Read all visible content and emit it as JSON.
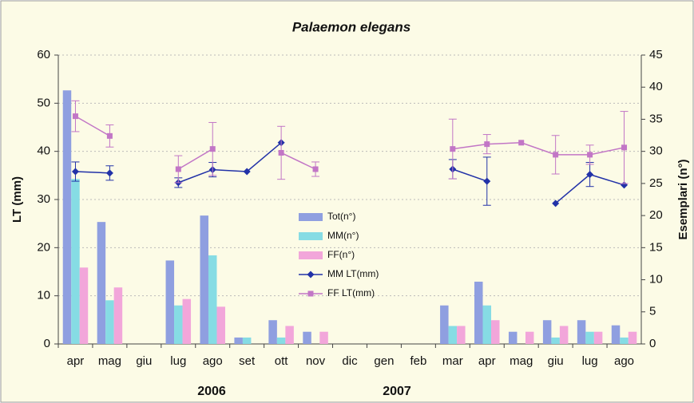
{
  "chart_data": {
    "type": "bar-line",
    "title": "Palaemon elegans",
    "y_label": "LT (mm)",
    "y2_label": "Esemplari (n°)",
    "year_labels": [
      "2006",
      "2007"
    ],
    "categories": [
      "apr",
      "mag",
      "giu",
      "lug",
      "ago",
      "set",
      "ott",
      "nov",
      "dic",
      "gen",
      "feb",
      "mar",
      "apr",
      "mag",
      "giu",
      "lug",
      "ago"
    ],
    "ylim": [
      0,
      60
    ],
    "yticks": [
      0,
      10,
      20,
      30,
      40,
      50,
      60
    ],
    "y2lim": [
      0,
      45
    ],
    "y2ticks": [
      0,
      5,
      10,
      15,
      20,
      25,
      30,
      35,
      40,
      45
    ],
    "grid": true,
    "series": [
      {
        "name": "Tot(n°)",
        "kind": "bar",
        "axis": "y2",
        "color": "#8f9fe0",
        "values": [
          39.5,
          19,
          0,
          13,
          20,
          1,
          3.7,
          1.9,
          0,
          0,
          0,
          6,
          9.7,
          1.9,
          3.7,
          3.7,
          2.9
        ]
      },
      {
        "name": "MM(n°)",
        "kind": "bar",
        "axis": "y2",
        "color": "#86dce4",
        "values": [
          25.7,
          6.8,
          0,
          6,
          13.8,
          1,
          1,
          0,
          0,
          0,
          0,
          2.8,
          6,
          0,
          1,
          1.9,
          1
        ]
      },
      {
        "name": "FF(n°)",
        "kind": "bar",
        "axis": "y2",
        "color": "#f2a6da",
        "values": [
          11.9,
          8.8,
          0,
          7,
          5.8,
          0,
          2.8,
          1.9,
          0,
          0,
          0,
          2.8,
          3.7,
          1.9,
          2.8,
          1.9,
          1.9
        ]
      },
      {
        "name": "MM LT(mm)",
        "kind": "line",
        "marker": "diamond",
        "color": "#2232a8",
        "values": [
          35.8,
          35.5,
          null,
          33.5,
          36.2,
          35.8,
          41.8,
          null,
          null,
          null,
          null,
          36.3,
          33.8,
          null,
          29.2,
          35.2,
          33.0
        ],
        "errors": [
          2,
          1.5,
          null,
          1,
          1.5,
          null,
          null,
          null,
          null,
          null,
          null,
          2,
          5,
          null,
          null,
          2.5,
          null
        ]
      },
      {
        "name": "FF LT(mm)",
        "kind": "line",
        "marker": "square",
        "color": "#c276c6",
        "values": [
          47.3,
          43.2,
          null,
          36.3,
          40.5,
          null,
          39.7,
          36.3,
          null,
          null,
          null,
          40.5,
          41.5,
          41.8,
          39.3,
          39.3,
          40.8
        ],
        "errors": [
          3.2,
          2.3,
          null,
          2.8,
          5.5,
          null,
          5.5,
          1.5,
          null,
          null,
          null,
          6.2,
          2,
          null,
          4,
          2,
          7.5
        ]
      }
    ]
  }
}
